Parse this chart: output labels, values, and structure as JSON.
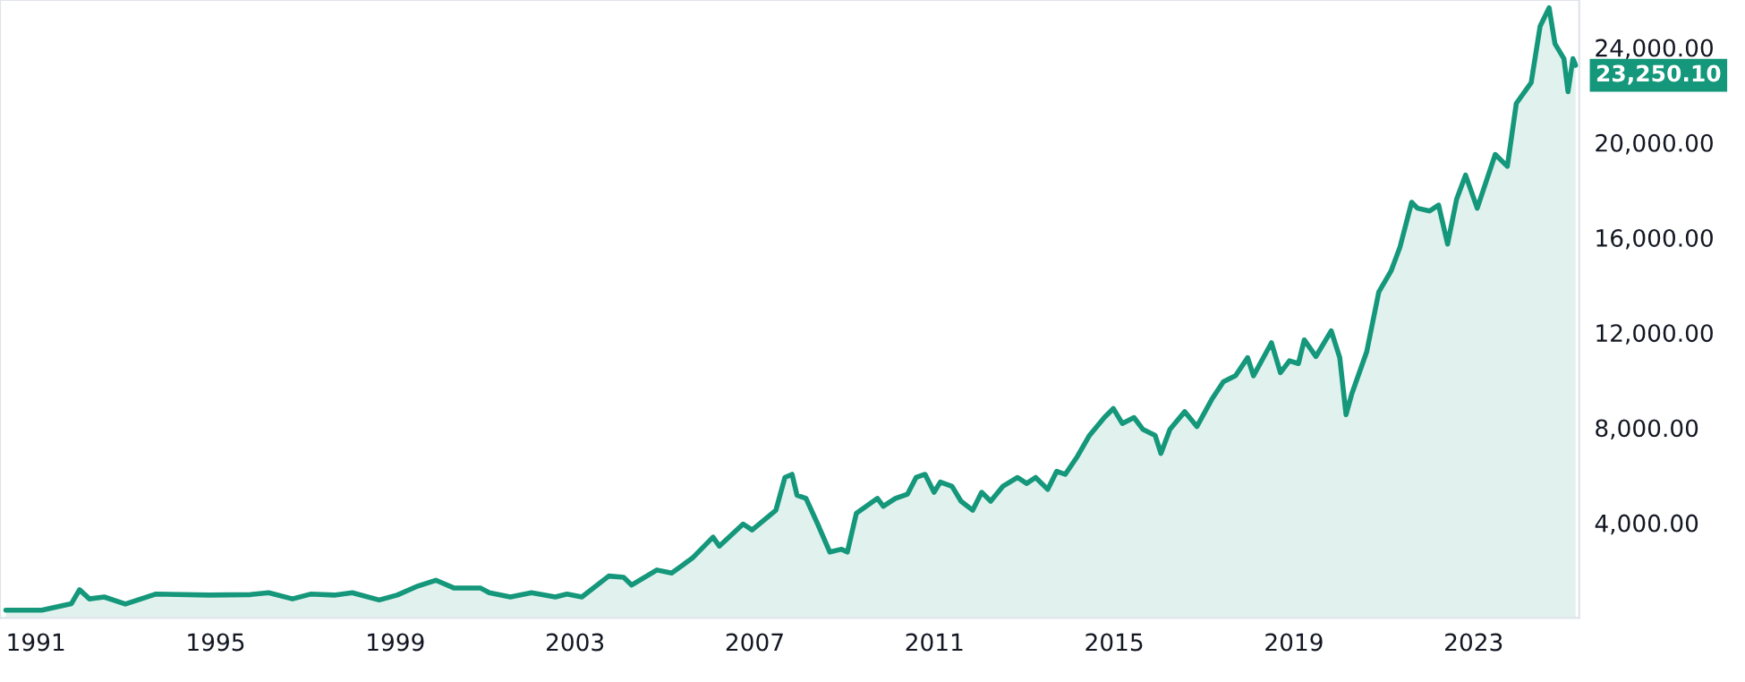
{
  "chart_data": {
    "type": "area",
    "x": [
      1990.33,
      1991.13,
      1991.79,
      1991.97,
      1992.19,
      1992.52,
      1992.99,
      1993.66,
      1994.85,
      1995.78,
      1996.18,
      1996.71,
      1997.11,
      1997.64,
      1998.04,
      1998.64,
      1999.04,
      1999.5,
      1999.9,
      2000.3,
      2000.89,
      2001.09,
      2001.56,
      2002.03,
      2002.56,
      2002.82,
      2003.15,
      2003.75,
      2004.08,
      2004.26,
      2004.82,
      2005.15,
      2005.61,
      2006.07,
      2006.21,
      2006.74,
      2006.94,
      2007.47,
      2007.67,
      2007.83,
      2007.94,
      2008.14,
      2008.4,
      2008.67,
      2008.93,
      2009.06,
      2009.26,
      2009.73,
      2009.86,
      2010.13,
      2010.4,
      2010.59,
      2010.79,
      2010.99,
      2011.13,
      2011.39,
      2011.59,
      2011.85,
      2012.05,
      2012.25,
      2012.52,
      2012.85,
      2013.05,
      2013.25,
      2013.52,
      2013.72,
      2013.91,
      2014.18,
      2014.45,
      2014.78,
      2014.98,
      2015.18,
      2015.44,
      2015.64,
      2015.91,
      2016.04,
      2016.24,
      2016.57,
      2016.84,
      2017.17,
      2017.43,
      2017.7,
      2017.97,
      2018.1,
      2018.5,
      2018.7,
      2018.9,
      2019.1,
      2019.23,
      2019.49,
      2019.83,
      2020.02,
      2020.16,
      2020.29,
      2020.62,
      2020.89,
      2021.16,
      2021.36,
      2021.62,
      2021.75,
      2022.02,
      2022.22,
      2022.42,
      2022.62,
      2022.82,
      2023.08,
      2023.48,
      2023.75,
      2023.95,
      2024.28,
      2024.48,
      2024.68,
      2024.81,
      2025.01,
      2025.1,
      2025.21,
      2025.27
    ],
    "values": [
      325,
      325,
      600,
      1185,
      800,
      880,
      580,
      1000,
      960,
      980,
      1060,
      800,
      1000,
      960,
      1060,
      755,
      960,
      1340,
      1585,
      1260,
      1260,
      1060,
      880,
      1060,
      880,
      1000,
      880,
      1760,
      1710,
      1380,
      2015,
      1890,
      2515,
      3400,
      3020,
      3950,
      3700,
      4530,
      5910,
      6040,
      5160,
      5030,
      3950,
      2770,
      2890,
      2770,
      4400,
      5030,
      4700,
      5030,
      5210,
      5910,
      6040,
      5285,
      5715,
      5535,
      4910,
      4530,
      5285,
      4910,
      5535,
      5910,
      5660,
      5910,
      5410,
      6170,
      6040,
      6795,
      7680,
      8430,
      8810,
      8180,
      8430,
      7930,
      7680,
      6920,
      7930,
      8680,
      8050,
      9190,
      9940,
      10190,
      10950,
      10190,
      11575,
      10320,
      10820,
      10700,
      11700,
      11000,
      12080,
      10950,
      8550,
      9440,
      11200,
      13720,
      14590,
      15600,
      17490,
      17240,
      17120,
      17370,
      15730,
      17610,
      18630,
      17240,
      19500,
      19000,
      21650,
      22520,
      24900,
      25670,
      24160,
      23530,
      22140,
      23530,
      23250.1
    ],
    "color": "#14977a",
    "xlim": [
      1990.2,
      2025.35
    ],
    "xticks": [
      1991,
      1995,
      1999,
      2003,
      2007,
      2011,
      2015,
      2019,
      2023
    ],
    "ylim": [
      0,
      26000
    ],
    "yticks": [
      {
        "value": 4000,
        "label": "4,000.00"
      },
      {
        "value": 8000,
        "label": "8,000.00"
      },
      {
        "value": 12000,
        "label": "12,000.00"
      },
      {
        "value": 16000,
        "label": "16,000.00"
      },
      {
        "value": 20000,
        "label": "20,000.00"
      },
      {
        "value": 24000,
        "label": "24,000.00"
      }
    ],
    "annotations": [
      {
        "text": "23,250.10",
        "x": 2025.27,
        "y": 23250.1
      }
    ],
    "grid": false,
    "legend": false
  }
}
